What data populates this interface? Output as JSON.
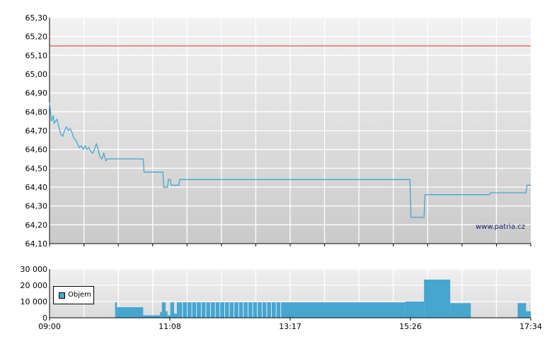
{
  "colors": {
    "price_line": "#46a6d0",
    "volume_bars": "#46a6d0",
    "reference_line": "#e03020",
    "watermark": "#1a1a6e"
  },
  "watermark": "www.patria.cz",
  "chart_data": [
    {
      "type": "line",
      "title": "",
      "xlabel": "",
      "ylabel": "",
      "ylim": [
        64.1,
        65.3
      ],
      "y_ticks": [
        "64,10",
        "64,20",
        "64,30",
        "64,40",
        "64,50",
        "64,60",
        "64,70",
        "64,80",
        "64,90",
        "65,00",
        "65,10",
        "65,20",
        "65,30"
      ],
      "reference_line": 65.15,
      "grid": true,
      "series": [
        {
          "points": [
            [
              "09:00",
              64.85
            ],
            [
              "09:01",
              64.8
            ],
            [
              "09:02",
              64.75
            ],
            [
              "09:04",
              64.78
            ],
            [
              "09:05",
              64.74
            ],
            [
              "09:08",
              64.76
            ],
            [
              "09:10",
              64.72
            ],
            [
              "09:12",
              64.68
            ],
            [
              "09:14",
              64.67
            ],
            [
              "09:16",
              64.7
            ],
            [
              "09:18",
              64.72
            ],
            [
              "09:20",
              64.7
            ],
            [
              "09:22",
              64.71
            ],
            [
              "09:24",
              64.69
            ],
            [
              "09:26",
              64.66
            ],
            [
              "09:28",
              64.65
            ],
            [
              "09:30",
              64.63
            ],
            [
              "09:32",
              64.61
            ],
            [
              "09:34",
              64.62
            ],
            [
              "09:36",
              64.6
            ],
            [
              "09:38",
              64.62
            ],
            [
              "09:40",
              64.6
            ],
            [
              "09:42",
              64.61
            ],
            [
              "09:44",
              64.59
            ],
            [
              "09:46",
              64.58
            ],
            [
              "09:48",
              64.6
            ],
            [
              "09:50",
              64.63
            ],
            [
              "09:52",
              64.6
            ],
            [
              "09:54",
              64.56
            ],
            [
              "09:56",
              64.55
            ],
            [
              "09:58",
              64.58
            ],
            [
              "10:00",
              64.54
            ],
            [
              "10:02",
              64.55
            ],
            [
              "10:40",
              64.55
            ],
            [
              "10:41",
              64.48
            ],
            [
              "11:01",
              64.48
            ],
            [
              "11:02",
              64.4
            ],
            [
              "11:06",
              64.4
            ],
            [
              "11:07",
              64.44
            ],
            [
              "11:09",
              64.44
            ],
            [
              "11:10",
              64.41
            ],
            [
              "11:18",
              64.41
            ],
            [
              "11:19",
              64.44
            ],
            [
              "15:25",
              64.44
            ],
            [
              "15:26",
              64.24
            ],
            [
              "15:40",
              64.24
            ],
            [
              "15:41",
              64.36
            ],
            [
              "16:50",
              64.36
            ],
            [
              "16:51",
              64.37
            ],
            [
              "17:29",
              64.37
            ],
            [
              "17:30",
              64.41
            ],
            [
              "17:34",
              64.41
            ]
          ]
        }
      ]
    },
    {
      "type": "bar",
      "title": "",
      "xlabel": "",
      "ylabel": "",
      "ylim": [
        0,
        30000
      ],
      "y_ticks": [
        "0",
        "10 000",
        "20 000",
        "30 000"
      ],
      "x_ticks": [
        "09:00",
        "11:08",
        "13:17",
        "15:26",
        "17:34"
      ],
      "grid": true,
      "legend": "top-left",
      "series": [
        {
          "name": "Objem",
          "bars": [
            [
              "10:10",
              "10:12",
              9500
            ],
            [
              "10:12",
              "10:40",
              6500
            ],
            [
              "10:40",
              "10:58",
              1500
            ],
            [
              "10:58",
              "11:00",
              3500
            ],
            [
              "11:00",
              "11:04",
              9500
            ],
            [
              "11:04",
              "11:06",
              4000
            ],
            [
              "11:06",
              "11:09",
              1500
            ],
            [
              "11:09",
              "11:13",
              9500
            ],
            [
              "11:13",
              "11:16",
              2500
            ],
            [
              "11:16",
              "11:19",
              9500
            ],
            [
              "11:19",
              "15:20",
              9500
            ],
            [
              "15:20",
              "15:40",
              10000
            ],
            [
              "15:40",
              "16:08",
              23500
            ],
            [
              "16:08",
              "16:30",
              9000
            ],
            [
              "16:30",
              "17:20",
              0
            ],
            [
              "17:20",
              "17:29",
              9000
            ],
            [
              "17:29",
              "17:34",
              4000
            ]
          ]
        }
      ]
    }
  ]
}
